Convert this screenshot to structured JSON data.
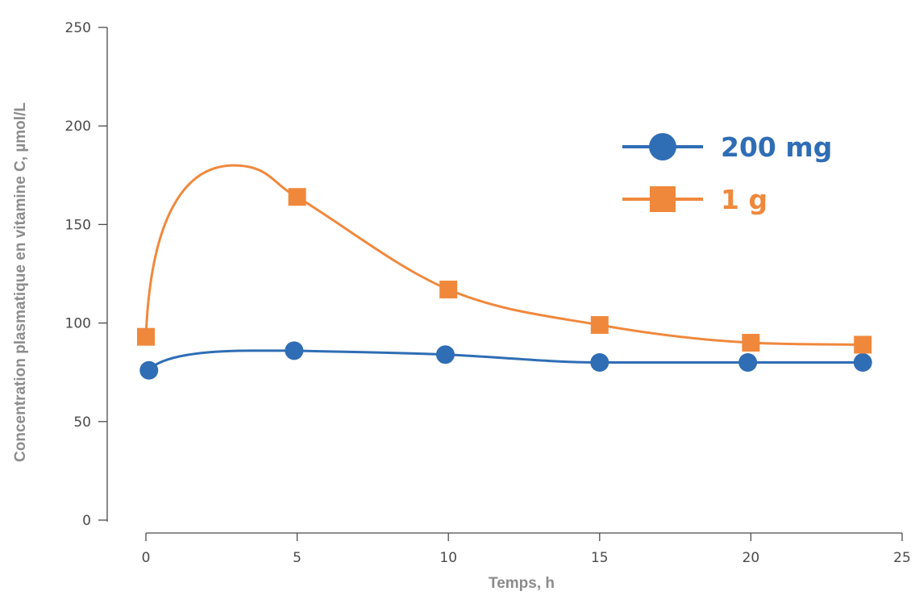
{
  "chart_data": {
    "type": "line",
    "title": "",
    "xlabel": "Temps, h",
    "ylabel": "Concentration plasmatique en vitamine C, µmol/L",
    "xlim": [
      0,
      25
    ],
    "ylim": [
      0,
      250
    ],
    "xticks": [
      0,
      5,
      10,
      15,
      20,
      25
    ],
    "yticks": [
      0,
      50,
      100,
      150,
      200,
      250
    ],
    "grid": false,
    "legend_position": "top-right",
    "series": [
      {
        "name": "200 mg",
        "color": "#2f6db5",
        "marker": "circle",
        "x": [
          0.1,
          4.9,
          9.9,
          15,
          19.9,
          23.7
        ],
        "y": [
          76,
          86,
          84,
          80,
          80,
          80
        ]
      },
      {
        "name": "1 g",
        "color": "#f0883c",
        "marker": "square",
        "x": [
          0,
          5,
          10,
          15,
          20,
          23.7
        ],
        "y": [
          93,
          164,
          117,
          99,
          90,
          89
        ]
      }
    ]
  }
}
